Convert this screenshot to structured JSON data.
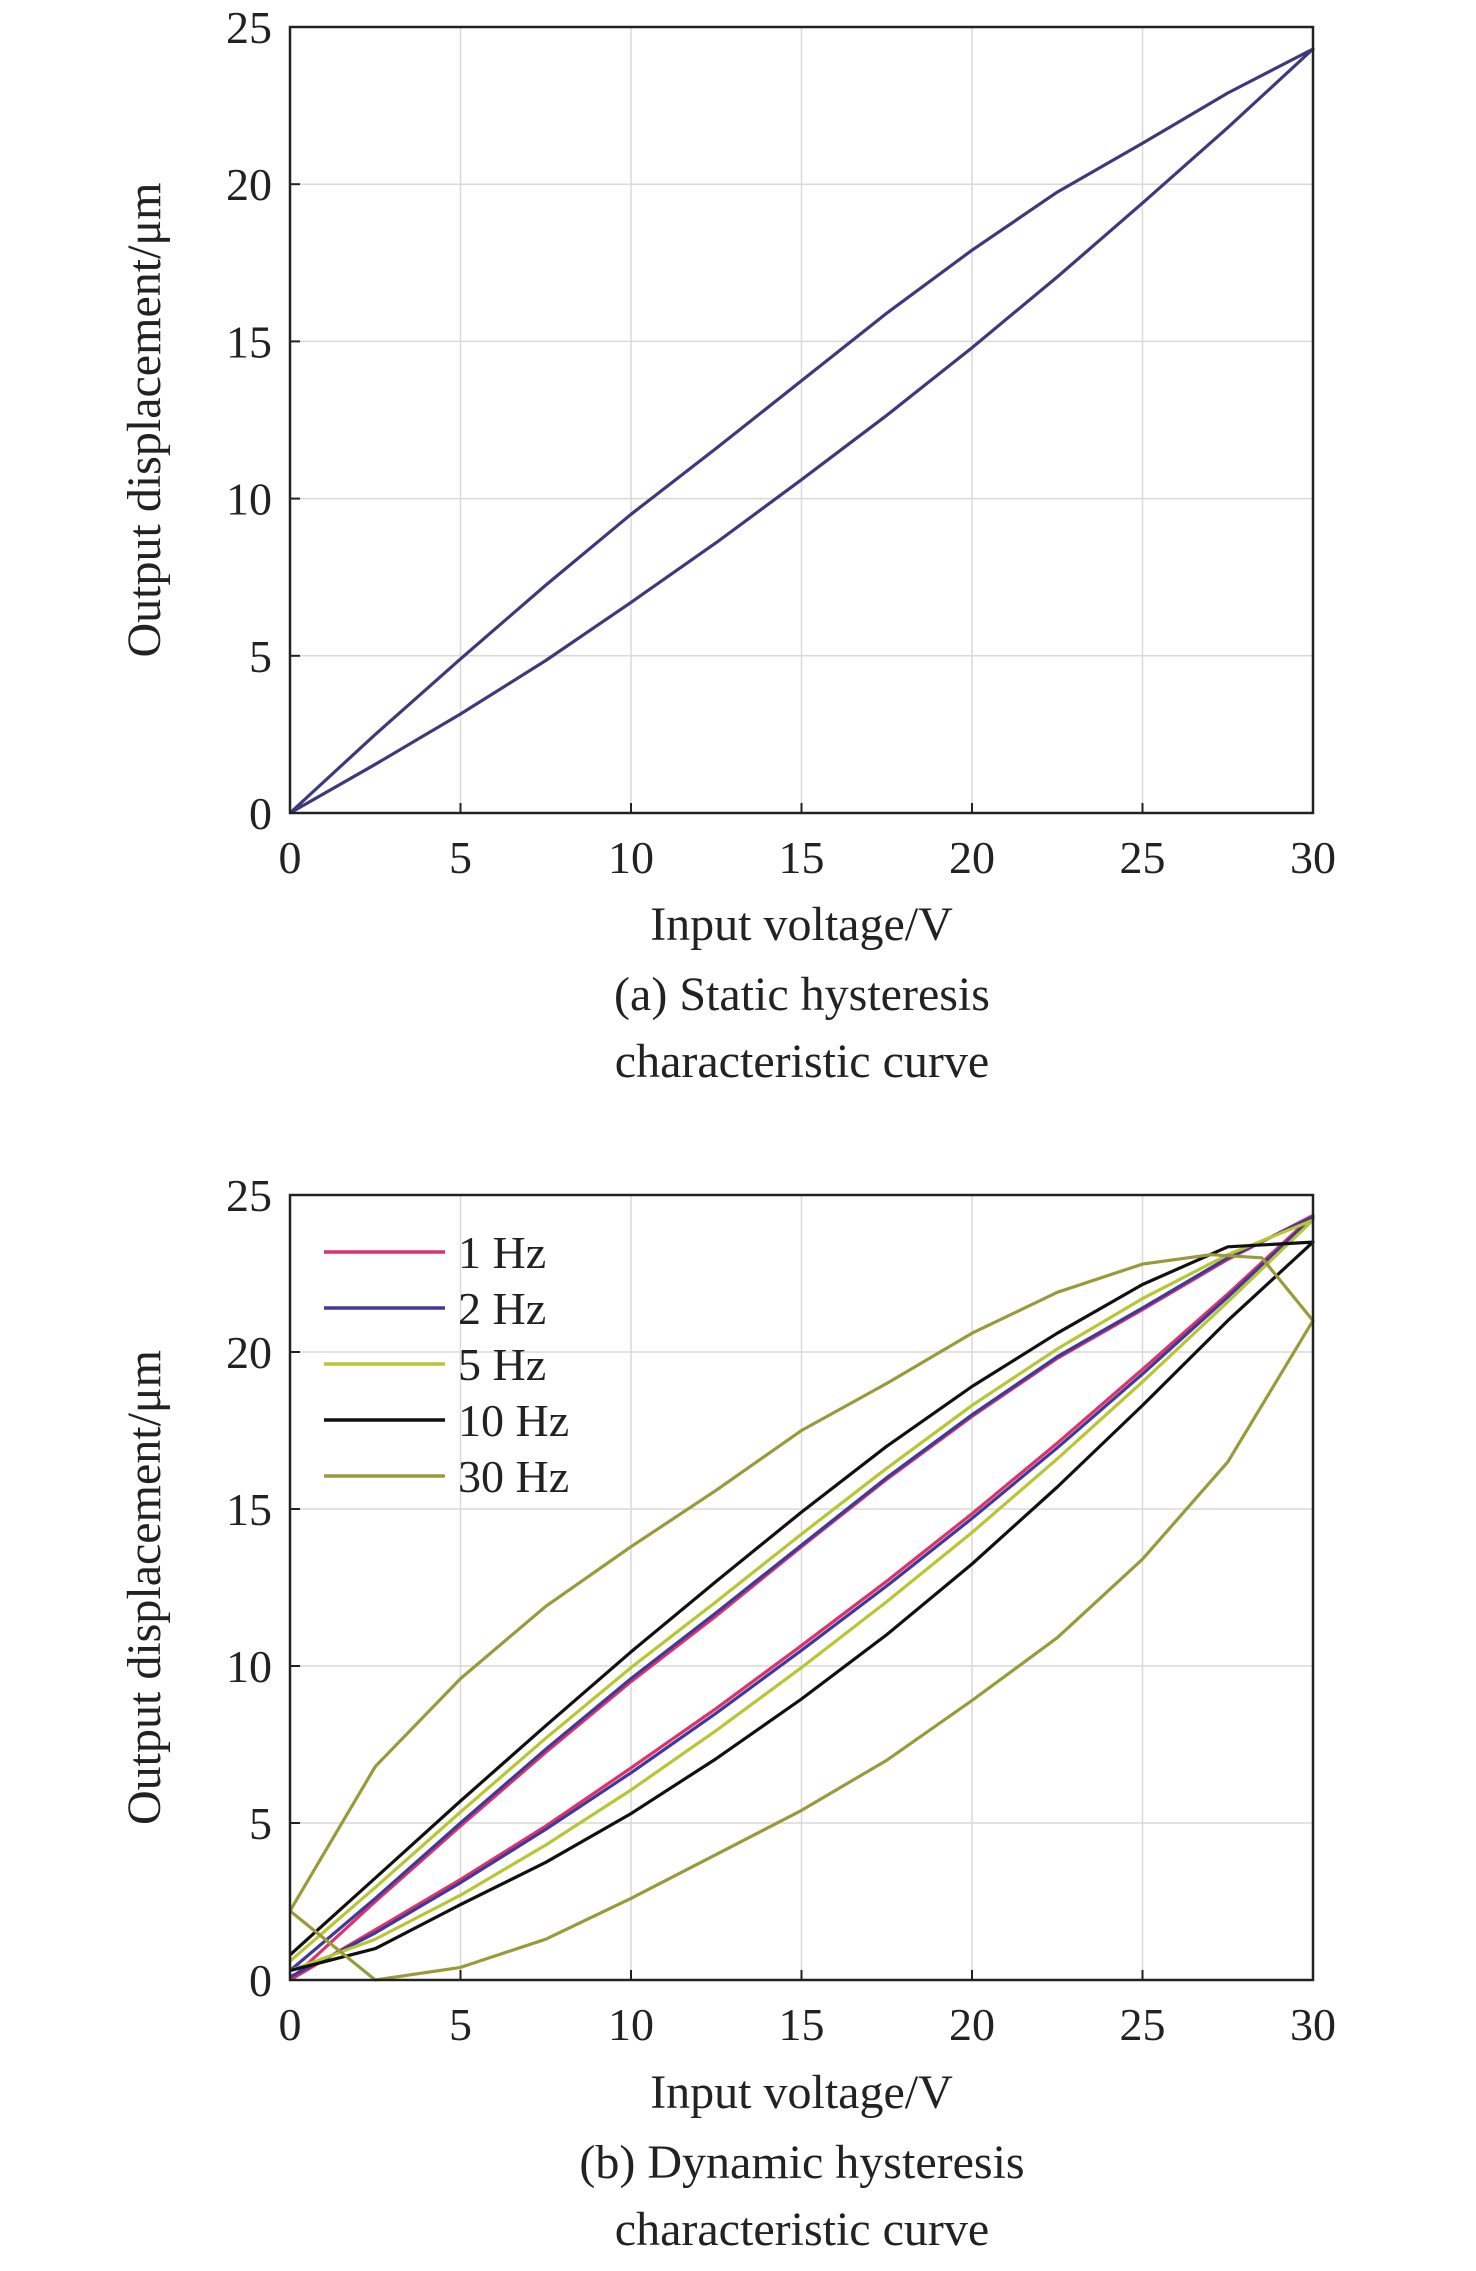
{
  "chart_data": [
    {
      "type": "line",
      "title": "",
      "caption_lines": [
        "(a) Static hysteresis",
        "characteristic curve"
      ],
      "xlabel": "Input voltage/V",
      "ylabel": "Output displacement/μm",
      "xlim": [
        0,
        30
      ],
      "ylim": [
        0,
        25
      ],
      "xticks": [
        "0",
        "5",
        "10",
        "15",
        "20",
        "25",
        "30"
      ],
      "yticks": [
        "0",
        "5",
        "10",
        "15",
        "20",
        "25"
      ],
      "grid": true,
      "series": [
        {
          "name": "",
          "color": "#3c3a7a",
          "x": [
            0,
            2.5,
            5,
            7.5,
            10,
            12.5,
            15,
            17.5,
            20,
            22.5,
            25,
            27.5,
            30,
            27.5,
            25,
            22.5,
            20,
            17.5,
            15,
            12.5,
            10,
            7.5,
            5,
            2.5,
            0
          ],
          "y": [
            0,
            1.55,
            3.15,
            4.85,
            6.7,
            8.6,
            10.6,
            12.65,
            14.8,
            17.05,
            19.4,
            21.8,
            24.3,
            22.9,
            21.3,
            19.75,
            17.9,
            15.9,
            13.75,
            11.6,
            9.5,
            7.25,
            4.9,
            2.5,
            0
          ]
        }
      ]
    },
    {
      "type": "line",
      "title": "",
      "caption_lines": [
        "(b) Dynamic hysteresis",
        "characteristic curve"
      ],
      "xlabel": "Input voltage/V",
      "ylabel": "Output displacement/μm",
      "xlim": [
        0,
        30
      ],
      "ylim": [
        0,
        25
      ],
      "xticks": [
        "0",
        "5",
        "10",
        "15",
        "20",
        "25",
        "30"
      ],
      "yticks": [
        "0",
        "5",
        "10",
        "15",
        "20",
        "25"
      ],
      "grid": true,
      "legend_position": "top-left",
      "series": [
        {
          "name": "1 Hz",
          "color": "#e0306a",
          "x": [
            0,
            2.5,
            5,
            7.5,
            10,
            12.5,
            15,
            17.5,
            20,
            22.5,
            25,
            27.5,
            30,
            27.5,
            25,
            22.5,
            20,
            17.5,
            15,
            12.5,
            10,
            7.5,
            5,
            2.5,
            0
          ],
          "y": [
            0,
            1.6,
            3.2,
            4.9,
            6.75,
            8.65,
            10.65,
            12.7,
            14.85,
            17.1,
            19.45,
            21.85,
            24.35,
            22.95,
            21.35,
            19.8,
            17.95,
            15.95,
            13.8,
            11.6,
            9.5,
            7.25,
            4.9,
            2.5,
            0
          ]
        },
        {
          "name": "2 Hz",
          "color": "#3d3a9c",
          "x": [
            0,
            2.5,
            5,
            7.5,
            10,
            12.5,
            15,
            17.5,
            20,
            22.5,
            25,
            27.5,
            30,
            27.5,
            25,
            22.5,
            20,
            17.5,
            15,
            12.5,
            10,
            7.5,
            5,
            2.5,
            0
          ],
          "y": [
            0.1,
            1.5,
            3.1,
            4.8,
            6.6,
            8.5,
            10.5,
            12.55,
            14.7,
            16.95,
            19.3,
            21.75,
            24.3,
            23.0,
            21.4,
            19.85,
            18.0,
            16.0,
            13.85,
            11.7,
            9.6,
            7.35,
            5.0,
            2.6,
            0.3
          ]
        },
        {
          "name": "5 Hz",
          "color": "#b8c634",
          "x": [
            0,
            2.5,
            5,
            7.5,
            10,
            12.5,
            15,
            17.5,
            20,
            22.5,
            25,
            27.5,
            30,
            27.5,
            25,
            22.5,
            20,
            17.5,
            15,
            12.5,
            10,
            7.5,
            5,
            2.5,
            0
          ],
          "y": [
            0.3,
            1.3,
            2.7,
            4.3,
            6.05,
            7.95,
            9.95,
            12.05,
            14.25,
            16.6,
            19.05,
            21.6,
            24.2,
            23.1,
            21.7,
            20.1,
            18.3,
            16.3,
            14.2,
            12.05,
            9.95,
            7.7,
            5.35,
            2.95,
            0.6
          ]
        },
        {
          "name": "10 Hz",
          "color": "#111111",
          "x": [
            0,
            2.5,
            5,
            7.5,
            10,
            12.5,
            15,
            17.5,
            20,
            22.5,
            25,
            27.5,
            30,
            27.5,
            25,
            22.5,
            20,
            17.5,
            15,
            12.5,
            10,
            7.5,
            5,
            2.5,
            0
          ],
          "y": [
            0.3,
            1.0,
            2.4,
            3.75,
            5.3,
            7.05,
            8.95,
            11.0,
            13.25,
            15.7,
            18.3,
            21.0,
            23.5,
            23.35,
            22.15,
            20.6,
            18.9,
            17.0,
            14.9,
            12.7,
            10.45,
            8.1,
            5.7,
            3.25,
            0.8
          ]
        },
        {
          "name": "30 Hz",
          "color": "#9a9a3a",
          "x": [
            0,
            2.5,
            5,
            7.5,
            10,
            12.5,
            15,
            17.5,
            20,
            22.5,
            25,
            27.5,
            30,
            28.5,
            27,
            25,
            22.5,
            20,
            17.5,
            15,
            12.5,
            10,
            7.5,
            5,
            2.5,
            0
          ],
          "y": [
            2.2,
            0.0,
            0.4,
            1.3,
            2.6,
            4.0,
            5.4,
            7.0,
            8.9,
            10.9,
            13.4,
            16.5,
            21.0,
            23.0,
            23.1,
            22.8,
            21.9,
            20.6,
            19.0,
            17.5,
            15.6,
            13.8,
            11.9,
            9.6,
            6.8,
            2.2
          ]
        }
      ]
    }
  ]
}
